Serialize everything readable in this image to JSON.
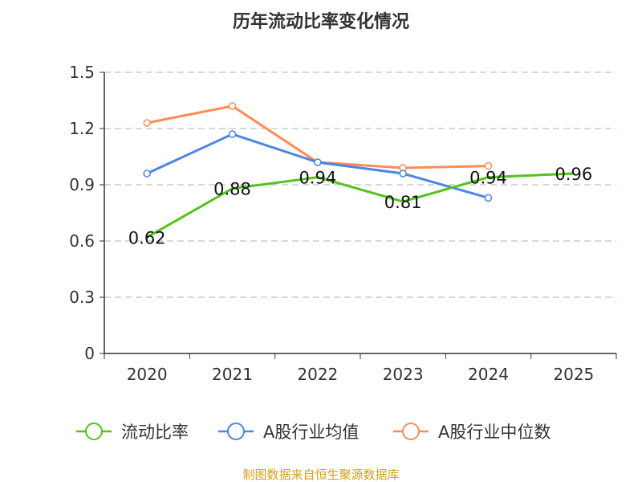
{
  "chart_data": {
    "type": "line",
    "title": "历年流动比率变化情况",
    "categories": [
      "2020",
      "2021",
      "2022",
      "2023",
      "2024",
      "2025"
    ],
    "ylim": [
      0,
      1.5
    ],
    "yticks": [
      "0",
      "0.3",
      "0.6",
      "0.9",
      "1.2",
      "1.5"
    ],
    "ytick_values": [
      0,
      0.3,
      0.6,
      0.9,
      1.2,
      1.5
    ],
    "grid": true,
    "legend_position": "bottom",
    "series": [
      {
        "name": "流动比率",
        "color": "#52c41a",
        "values": [
          0.62,
          0.88,
          0.94,
          0.81,
          0.94,
          0.96
        ],
        "labels": [
          "0.62",
          "0.88",
          "0.94",
          "0.81",
          "0.94",
          "0.96"
        ],
        "markers": false
      },
      {
        "name": "A股行业均值",
        "color": "#4e86e4",
        "values": [
          0.96,
          1.17,
          1.02,
          0.96,
          0.83,
          null
        ],
        "markers": true
      },
      {
        "name": "A股行业中位数",
        "color": "#ff8c55",
        "values": [
          1.23,
          1.32,
          1.02,
          0.99,
          1.0,
          null
        ],
        "markers": true
      }
    ],
    "source": "制图数据来自恒生聚源数据库"
  }
}
